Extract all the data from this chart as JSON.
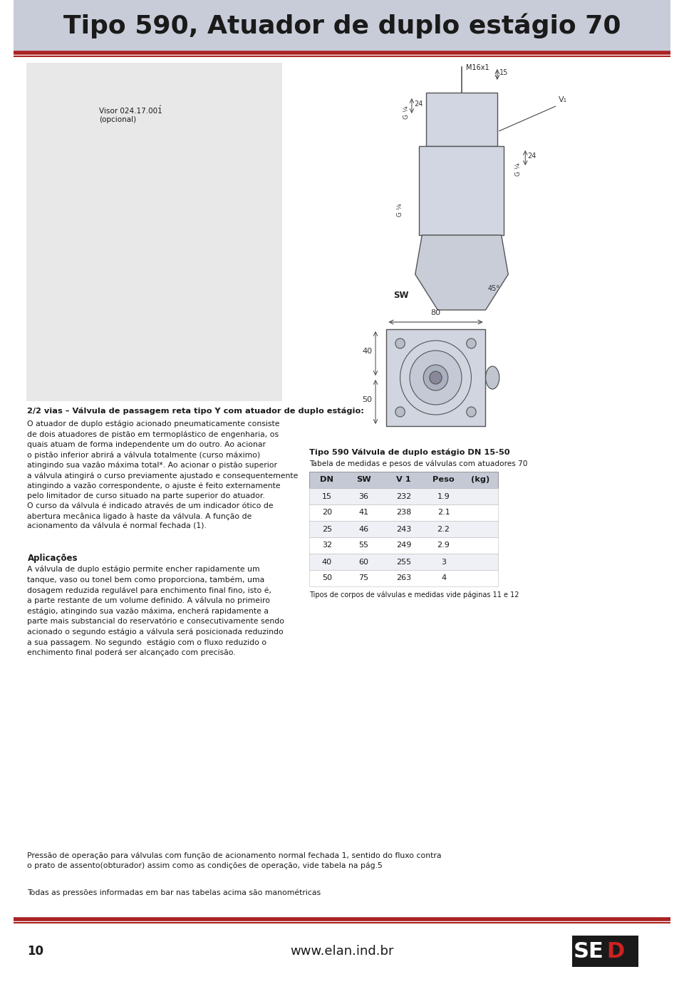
{
  "title": "Tipo 590, Atuador de duplo estágio 70",
  "title_bg_color": "#c8ccd8",
  "title_text_color": "#1a1a1a",
  "red_line_color": "#aa2222",
  "body_bg": "#ffffff",
  "page_number": "10",
  "website": "www.elan.ind.br",
  "table_title": "Tipo 590 Válvula de duplo estágio DN 15-50",
  "table_subtitle": "Tabela de medidas e pesos de válvulas com atuadores 70",
  "table_headers": [
    "DN",
    "SW",
    "V 1",
    "Peso",
    "(kg)"
  ],
  "table_data": [
    [
      15,
      36,
      232,
      1.9
    ],
    [
      20,
      41,
      238,
      2.1
    ],
    [
      25,
      46,
      243,
      2.2
    ],
    [
      32,
      55,
      249,
      2.9
    ],
    [
      40,
      60,
      255,
      3.0
    ],
    [
      50,
      75,
      263,
      4.0
    ]
  ],
  "table_note": "Tipos de corpos de válvulas e medidas vide páginas 11 e 12",
  "main_text_left": "2/2 vias – Válvula de passagem reta tipo Y com atuador de duplo estágio:",
  "paragraph1": "O atuador de duplo estágio acionado pneumaticamente consiste\nde dois atuadores de pistão em termoplástico de engenharia, os\nquais atuam de forma independente um do outro. Ao acionar\no pistão inferior abrirá a válvula totalmente (curso máximo)\natingindo sua vazão máxima total*. Ao acionar o pistão superior\na válvula atingirá o curso previamente ajustado e consequentemente\natingindo a vazão correspondente, o ajuste é feito externamente\npelo limitador de curso situado na parte superior do atuador.\nO curso da válvula é indicado através de um indicador ótico de\nabertura mecânica ligado à haste da válvula. A função de\nacionamento da válvula é normal fechada (1).",
  "aplicacoes_title": "Aplicações",
  "aplicacoes_text": "A válvula de duplo estágio permite encher rapidamente um\ntanque, vaso ou tonel bem como proporciona, também, uma\ndosagem reduzida regulável para enchimento final fino, isto é,\na parte restante de um volume definido. A válvula no primeiro\nestágio, atingindo sua vazão máxima, encherá rapidamente a\nparte mais substancial do reservatório e consecutivamente sendo\nacionado o segundo estágio a válvula será posicionada reduzindo\na sua passagem. No segundo  estágio com o fluxo reduzido o\nenchimento final poderá ser alcançado com precisão.",
  "pressure_text1": "Pressão de operação para válvulas com função de acionamento normal fechada 1, sentido do fluxo contra\no prato de assento(obturador) assim como as condições de operação, vide tabela na pág.5",
  "pressure_text2": "Todas as pressões informadas em bar nas tabelas acima são manométricas",
  "label_visor": "Visor 024.17.001\n(opcional)",
  "label_m16x1": "M16x1",
  "label_sw": "SW",
  "dim_15": "15",
  "dim_24": "24",
  "dim_g14": "G ¼",
  "dim_v1": "V₁",
  "dim_45": "45°",
  "dim_80": "80",
  "dim_40": "40",
  "dim_50": "50"
}
